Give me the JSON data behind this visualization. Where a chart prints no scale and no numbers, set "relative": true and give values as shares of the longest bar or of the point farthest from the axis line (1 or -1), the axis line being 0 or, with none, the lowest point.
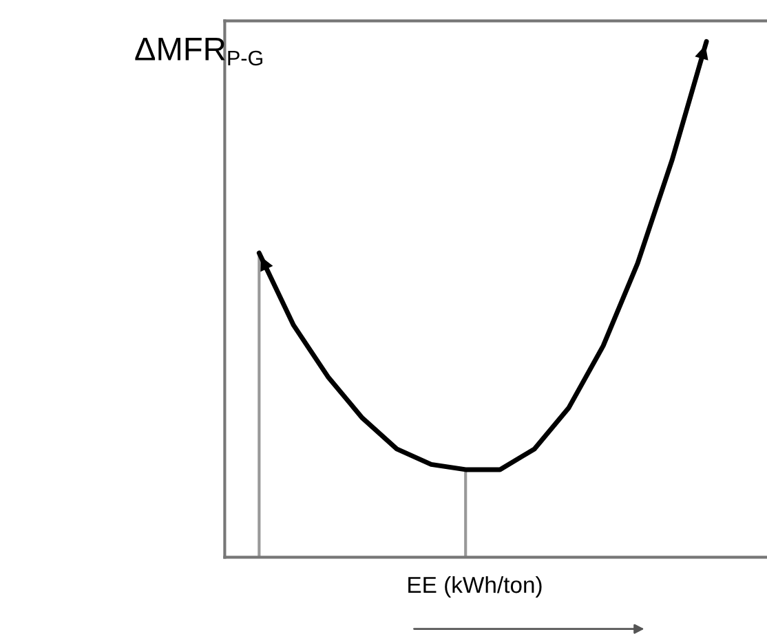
{
  "chart_data": {
    "type": "line",
    "relative": true,
    "ylabel": "ΔMFR$_{P-G}$",
    "xlabel": "EE (kWh/ton)",
    "categories": [
      null,
      null,
      null,
      null,
      null,
      null,
      null,
      null,
      null,
      null,
      null,
      null,
      null,
      null
    ],
    "series": [
      {
        "color": "#000000",
        "values": [
          0.59,
          0.45,
          0.35,
          0.27,
          0.21,
          0.18,
          0.17,
          0.17,
          0.21,
          0.29,
          0.41,
          0.57,
          0.77,
          1
        ]
      }
    ],
    "legend": false,
    "marker": "none",
    "line_style": "solid"
  }
}
